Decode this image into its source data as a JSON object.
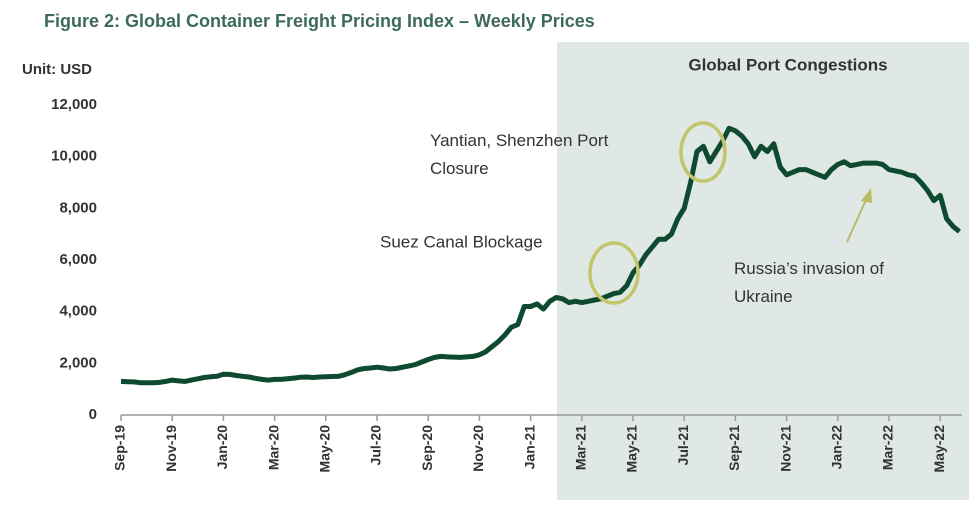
{
  "chart_data": {
    "type": "line",
    "title": "Figure 2: Global Container Freight Pricing Index – Weekly Prices",
    "ylabel": "Unit: USD",
    "shade_label": "Global Port Congestions",
    "annotations": [
      "Yantian, Shenzhen Port Closure",
      "Suez Canal Blockage",
      "Russia’s invasion of Ukraine"
    ],
    "categories": [
      "Sep-19",
      null,
      null,
      null,
      null,
      null,
      null,
      null,
      "Nov-19",
      null,
      null,
      null,
      null,
      null,
      null,
      null,
      "Jan-20",
      null,
      null,
      null,
      null,
      null,
      null,
      null,
      "Mar-20",
      null,
      null,
      null,
      null,
      null,
      null,
      null,
      "May-20",
      null,
      null,
      null,
      null,
      null,
      null,
      null,
      "Jul-20",
      null,
      null,
      null,
      null,
      null,
      null,
      null,
      "Sep-20",
      null,
      null,
      null,
      null,
      null,
      null,
      null,
      "Nov-20",
      null,
      null,
      null,
      null,
      null,
      null,
      null,
      "Jan-21",
      null,
      null,
      null,
      null,
      null,
      null,
      null,
      "Mar-21",
      null,
      null,
      null,
      null,
      null,
      null,
      null,
      "May-21",
      null,
      null,
      null,
      null,
      null,
      null,
      null,
      "Jul-21",
      null,
      null,
      null,
      null,
      null,
      null,
      null,
      "Sep-21",
      null,
      null,
      null,
      null,
      null,
      null,
      null,
      "Nov-21",
      null,
      null,
      null,
      null,
      null,
      null,
      null,
      "Jan-22",
      null,
      null,
      null,
      null,
      null,
      null,
      null,
      "Mar-22",
      null,
      null,
      null,
      null,
      null,
      null,
      null,
      "May-22",
      null,
      null,
      null
    ],
    "series": [
      {
        "name": "Weekly Prices",
        "color": "#0d4a30",
        "values": [
          1300,
          1290,
          1280,
          1250,
          1250,
          1250,
          1260,
          1300,
          1350,
          1320,
          1300,
          1350,
          1400,
          1450,
          1480,
          1500,
          1580,
          1570,
          1530,
          1500,
          1470,
          1420,
          1380,
          1350,
          1380,
          1380,
          1400,
          1430,
          1460,
          1470,
          1450,
          1470,
          1480,
          1490,
          1500,
          1560,
          1650,
          1750,
          1800,
          1820,
          1850,
          1820,
          1780,
          1800,
          1850,
          1900,
          1950,
          2050,
          2150,
          2230,
          2270,
          2250,
          2240,
          2230,
          2250,
          2270,
          2330,
          2450,
          2650,
          2850,
          3100,
          3400,
          3500,
          4200,
          4200,
          4300,
          4100,
          4400,
          4550,
          4500,
          4350,
          4400,
          4350,
          4400,
          4450,
          4500,
          4600,
          4700,
          4750,
          5000,
          5500,
          5800,
          6200,
          6500,
          6800,
          6800,
          7000,
          7600,
          8000,
          9000,
          10200,
          10400,
          9800,
          10200,
          10600,
          11100,
          11000,
          10800,
          10500,
          10000,
          10400,
          10200,
          10500,
          9600,
          9300,
          9400,
          9500,
          9500,
          9400,
          9300,
          9200,
          9500,
          9700,
          9800,
          9650,
          9700,
          9750,
          9750,
          9750,
          9700,
          9500,
          9450,
          9400,
          9300,
          9250,
          9000,
          8700,
          8300,
          8500,
          7600,
          7300,
          7100
        ]
      }
    ],
    "ylim": [
      0,
      12000
    ],
    "yticks": [
      0,
      {
        "value": 2000,
        "label": "2,000"
      },
      {
        "value": 4000,
        "label": "4,000"
      },
      {
        "value": 6000,
        "label": "6,000"
      },
      {
        "value": 8000,
        "label": "8,000"
      },
      {
        "value": 10000,
        "label": "10,000"
      },
      {
        "value": 12000,
        "label": "12,000"
      }
    ]
  }
}
